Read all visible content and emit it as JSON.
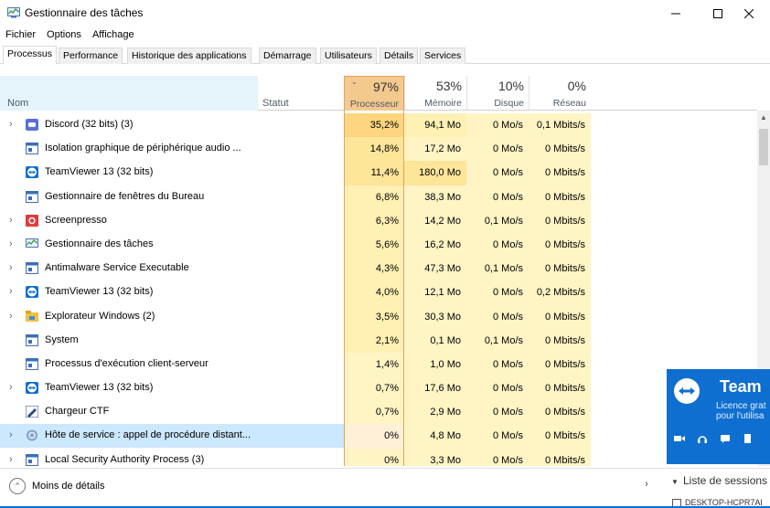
{
  "window": {
    "title": "Gestionnaire des tâches"
  },
  "menu": [
    "Fichier",
    "Options",
    "Affichage"
  ],
  "tabs": [
    {
      "label": "Processus",
      "active": true
    },
    {
      "label": "Performance"
    },
    {
      "label": "Historique des applications"
    },
    {
      "label": "Démarrage"
    },
    {
      "label": "Utilisateurs"
    },
    {
      "label": "Détails"
    },
    {
      "label": "Services"
    }
  ],
  "columns": {
    "name": "Nom",
    "status": "Statut",
    "cpu": {
      "pct": "97%",
      "label": "Processeur"
    },
    "memory": {
      "pct": "53%",
      "label": "Mémoire"
    },
    "disk": {
      "pct": "10%",
      "label": "Disque"
    },
    "network": {
      "pct": "0%",
      "label": "Réseau"
    }
  },
  "processes": [
    {
      "name": "Discord (32 bits) (3)",
      "cpu": "35,2%",
      "mem": "94,1 Mo",
      "disk": "0 Mo/s",
      "net": "0,1 Mbits/s",
      "expand": true,
      "icon": "discord-icon",
      "color": "#5b6fd6"
    },
    {
      "name": "Isolation graphique de périphérique audio ...",
      "cpu": "14,8%",
      "mem": "17,2 Mo",
      "disk": "0 Mo/s",
      "net": "0 Mbits/s",
      "expand": false,
      "icon": "app-window-icon",
      "color": "#3c6fb4"
    },
    {
      "name": "TeamViewer 13 (32 bits)",
      "cpu": "11,4%",
      "mem": "180,0 Mo",
      "disk": "0 Mo/s",
      "net": "0 Mbits/s",
      "expand": false,
      "icon": "teamviewer-icon",
      "color": "#0e6fd0"
    },
    {
      "name": "Gestionnaire de fenêtres du Bureau",
      "cpu": "6,8%",
      "mem": "38,3 Mo",
      "disk": "0 Mo/s",
      "net": "0 Mbits/s",
      "expand": false,
      "icon": "app-window-icon",
      "color": "#3c6fb4"
    },
    {
      "name": "Screenpresso",
      "cpu": "6,3%",
      "mem": "14,2 Mo",
      "disk": "0,1 Mo/s",
      "net": "0 Mbits/s",
      "expand": true,
      "icon": "screenpresso-icon",
      "color": "#e03a3a"
    },
    {
      "name": "Gestionnaire des tâches",
      "cpu": "5,6%",
      "mem": "16,2 Mo",
      "disk": "0 Mo/s",
      "net": "0 Mbits/s",
      "expand": true,
      "icon": "task-manager-icon",
      "color": "#3a8f4a"
    },
    {
      "name": "Antimalware Service Executable",
      "cpu": "4,3%",
      "mem": "47,3 Mo",
      "disk": "0,1 Mo/s",
      "net": "0 Mbits/s",
      "expand": true,
      "icon": "app-window-icon",
      "color": "#3c6fb4"
    },
    {
      "name": "TeamViewer 13 (32 bits)",
      "cpu": "4,0%",
      "mem": "12,1 Mo",
      "disk": "0 Mo/s",
      "net": "0,2 Mbits/s",
      "expand": true,
      "icon": "teamviewer-icon",
      "color": "#0e6fd0"
    },
    {
      "name": "Explorateur Windows (2)",
      "cpu": "3,5%",
      "mem": "30,3 Mo",
      "disk": "0 Mo/s",
      "net": "0 Mbits/s",
      "expand": true,
      "icon": "folder-icon",
      "color": "#f0c040"
    },
    {
      "name": "System",
      "cpu": "2,1%",
      "mem": "0,1 Mo",
      "disk": "0,1 Mo/s",
      "net": "0 Mbits/s",
      "expand": false,
      "icon": "app-window-icon",
      "color": "#3c6fb4"
    },
    {
      "name": "Processus d'exécution client-serveur",
      "cpu": "1,4%",
      "mem": "1,0 Mo",
      "disk": "0 Mo/s",
      "net": "0 Mbits/s",
      "expand": false,
      "icon": "app-window-icon",
      "color": "#3c6fb4"
    },
    {
      "name": "TeamViewer 13 (32 bits)",
      "cpu": "0,7%",
      "mem": "17,6 Mo",
      "disk": "0 Mo/s",
      "net": "0 Mbits/s",
      "expand": true,
      "icon": "teamviewer-icon",
      "color": "#0e6fd0"
    },
    {
      "name": "Chargeur CTF",
      "cpu": "0,7%",
      "mem": "2,9 Mo",
      "disk": "0 Mo/s",
      "net": "0 Mbits/s",
      "expand": false,
      "icon": "ctf-loader-icon",
      "color": "#2a4a8a"
    },
    {
      "name": "Hôte de service : appel de procédure distant...",
      "cpu": "0%",
      "mem": "4,8 Mo",
      "disk": "0 Mo/s",
      "net": "0 Mbits/s",
      "expand": true,
      "icon": "service-host-icon",
      "color": "#8aa0c0",
      "selected": true
    },
    {
      "name": "Local Security Authority Process (3)",
      "cpu": "0%",
      "mem": "3,3 Mo",
      "disk": "0 Mo/s",
      "net": "0 Mbits/s",
      "expand": true,
      "icon": "app-window-icon",
      "color": "#3c6fb4"
    }
  ],
  "footer": {
    "fewer_details": "Moins de détails"
  },
  "teamviewer": {
    "title": "Team",
    "line1": "Licence grat",
    "line2": "pour l'utilisa",
    "sessions_label": "Liste de sessions",
    "pc_label": "DESKTOP-HCPR7AI"
  }
}
